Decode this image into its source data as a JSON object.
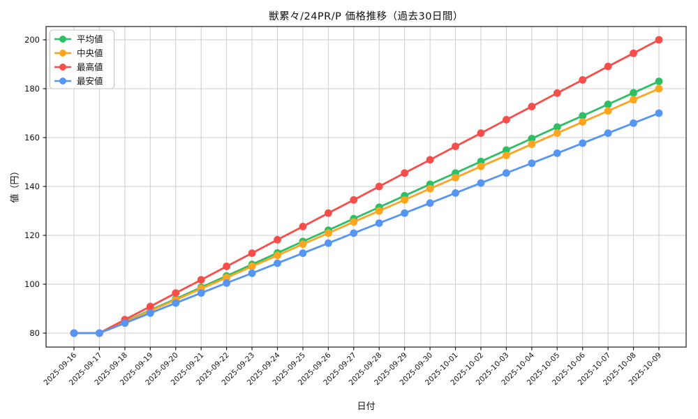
{
  "chart_data": {
    "type": "line",
    "title": "獣累々/24PR/P 価格推移（過去30日間）",
    "xlabel": "日付",
    "ylabel": "値（円）",
    "grid": true,
    "legend_position": "upper left",
    "ylim": [
      74,
      206
    ],
    "yticks": [
      80,
      100,
      120,
      140,
      160,
      180,
      200
    ],
    "x": [
      "2025-09-16",
      "2025-09-17",
      "2025-09-18",
      "2025-09-19",
      "2025-09-20",
      "2025-09-21",
      "2025-09-22",
      "2025-09-23",
      "2025-09-24",
      "2025-09-25",
      "2025-09-26",
      "2025-09-27",
      "2025-09-28",
      "2025-09-29",
      "2025-09-30",
      "2025-10-01",
      "2025-10-02",
      "2025-10-03",
      "2025-10-04",
      "2025-10-05",
      "2025-10-06",
      "2025-10-07",
      "2025-10-08",
      "2025-10-09"
    ],
    "series": [
      {
        "key": "average",
        "name": "平均値",
        "color": "#2EBE64",
        "values": [
          80,
          80,
          84.7,
          89.4,
          94.0,
          98.7,
          103.4,
          108.1,
          112.8,
          117.5,
          122.1,
          126.8,
          131.5,
          136.2,
          140.9,
          145.5,
          150.2,
          154.9,
          159.6,
          164.3,
          168.9,
          173.6,
          178.3,
          183
        ]
      },
      {
        "key": "median",
        "name": "中央値",
        "color": "#FFA41E",
        "values": [
          80,
          80,
          84.5,
          89.1,
          93.6,
          98.2,
          102.7,
          107.3,
          111.8,
          116.4,
          120.9,
          125.5,
          130.0,
          134.5,
          139.1,
          143.6,
          148.2,
          152.7,
          157.3,
          161.8,
          166.4,
          170.9,
          175.5,
          180
        ]
      },
      {
        "key": "max",
        "name": "最高値",
        "color": "#F74E4B",
        "values": [
          80,
          80,
          85.5,
          90.9,
          96.4,
          101.8,
          107.3,
          112.7,
          118.2,
          123.6,
          129.1,
          134.5,
          140.0,
          145.5,
          150.9,
          156.4,
          161.8,
          167.3,
          172.7,
          178.2,
          183.6,
          189.1,
          194.5,
          200
        ]
      },
      {
        "key": "min",
        "name": "最安値",
        "color": "#5596F5",
        "values": [
          80,
          80,
          84.1,
          88.2,
          92.3,
          96.4,
          100.5,
          104.5,
          108.6,
          112.7,
          116.8,
          120.9,
          125.0,
          129.1,
          133.2,
          137.3,
          141.4,
          145.5,
          149.5,
          153.6,
          157.7,
          161.8,
          165.9,
          170
        ]
      }
    ],
    "style": {
      "grid_color": "#cccccc",
      "axis_color": "#1a1a1a",
      "legend_border_color": "#c0c0c0",
      "legend_bg_color": "#ffffff"
    }
  }
}
